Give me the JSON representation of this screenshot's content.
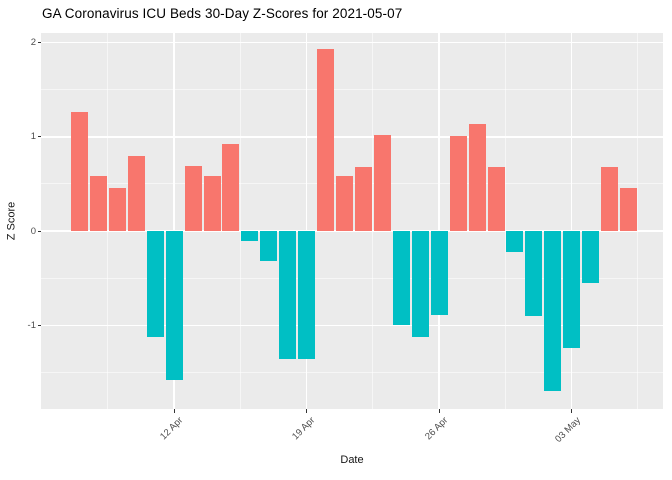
{
  "title": "GA Coronavirus ICU Beds 30-Day Z-Scores for 2021-05-07",
  "axes": {
    "y_label": "Z Score",
    "x_label": "Date",
    "y_tick_labels": [
      "2",
      "1",
      "0",
      "-1"
    ],
    "x_tick_labels": [
      "12 Apr",
      "19 Apr",
      "26 Apr",
      "03 May"
    ]
  },
  "colors": {
    "positive_bar": "#F8766D",
    "negative_bar": "#00BFC4",
    "panel_background": "#EBEBEB",
    "gridline": "#FFFFFF",
    "tick_text": "#4D4D4D",
    "title_text": "#000000"
  },
  "chart_data": {
    "type": "bar",
    "title": "GA Coronavirus ICU Beds 30-Day Z-Scores for 2021-05-07",
    "xlabel": "Date",
    "ylabel": "Z Score",
    "x": [
      "2021-04-07",
      "2021-04-08",
      "2021-04-09",
      "2021-04-10",
      "2021-04-11",
      "2021-04-12",
      "2021-04-13",
      "2021-04-14",
      "2021-04-15",
      "2021-04-16",
      "2021-04-17",
      "2021-04-18",
      "2021-04-19",
      "2021-04-20",
      "2021-04-21",
      "2021-04-22",
      "2021-04-23",
      "2021-04-24",
      "2021-04-25",
      "2021-04-26",
      "2021-04-27",
      "2021-04-28",
      "2021-04-29",
      "2021-04-30",
      "2021-05-01",
      "2021-05-02",
      "2021-05-03",
      "2021-05-04",
      "2021-05-05",
      "2021-05-06"
    ],
    "values": [
      1.26,
      0.58,
      0.46,
      0.8,
      -1.12,
      -1.58,
      0.69,
      0.58,
      0.92,
      -0.11,
      -0.32,
      -1.36,
      -1.36,
      1.93,
      0.58,
      0.68,
      1.02,
      -1.0,
      -1.12,
      -0.89,
      1.01,
      1.13,
      0.68,
      -0.22,
      -0.9,
      -1.7,
      -1.24,
      -0.55,
      0.68,
      0.46
    ],
    "color_rule": "positive bars #F8766D, negative bars #00BFC4",
    "ylim": [
      -1.9,
      2.1
    ],
    "y_major_ticks": [
      2,
      1,
      0,
      -1
    ],
    "y_minor_gridlines": [
      1.5,
      0.5,
      -0.5,
      -1.5
    ],
    "x_ticks": [
      {
        "label": "12 Apr",
        "bar_index": 5
      },
      {
        "label": "19 Apr",
        "bar_index": 12
      },
      {
        "label": "26 Apr",
        "bar_index": 19
      },
      {
        "label": "03 May",
        "bar_index": 26
      }
    ],
    "legend": "none",
    "grid": true
  }
}
